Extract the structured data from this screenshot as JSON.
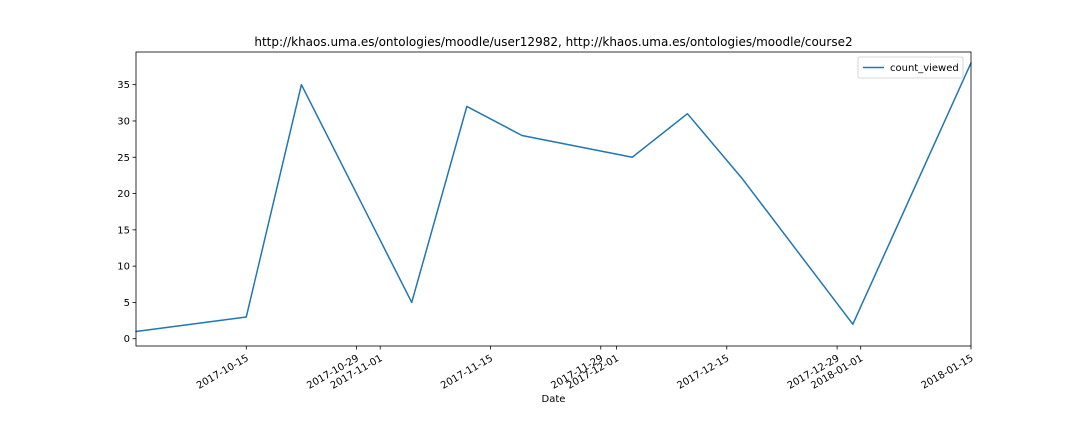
{
  "chart_data": {
    "type": "line",
    "title": "http://khaos.uma.es/ontologies/moodle/user12982, http://khaos.uma.es/ontologies/moodle/course2",
    "xlabel": "Date",
    "ylabel": "",
    "x_range": [
      "2017-10-01",
      "2018-01-15"
    ],
    "ylim": [
      -1,
      39.5
    ],
    "x_ticks": [
      "2017-10-15",
      "2017-10-29",
      "2017-11-01",
      "2017-11-15",
      "2017-11-29",
      "2017-12-01",
      "2017-12-15",
      "2017-12-29",
      "2018-01-01",
      "2018-01-15"
    ],
    "y_ticks": [
      0,
      5,
      10,
      15,
      20,
      25,
      30,
      35
    ],
    "x_tick_rotation_deg": 30,
    "grid": false,
    "legend_position": "top-right",
    "series": [
      {
        "name": "count_viewed",
        "color": "#1f77b4",
        "points": [
          {
            "x": "2017-10-01",
            "y": 1
          },
          {
            "x": "2017-10-15",
            "y": 3
          },
          {
            "x": "2017-10-22",
            "y": 35
          },
          {
            "x": "2017-11-05",
            "y": 5
          },
          {
            "x": "2017-11-12",
            "y": 32
          },
          {
            "x": "2017-11-19",
            "y": 28
          },
          {
            "x": "2017-12-03",
            "y": 25
          },
          {
            "x": "2017-12-10",
            "y": 31
          },
          {
            "x": "2017-12-17",
            "y": 22
          },
          {
            "x": "2017-12-31",
            "y": 2
          },
          {
            "x": "2018-01-15",
            "y": 38
          }
        ]
      }
    ]
  }
}
